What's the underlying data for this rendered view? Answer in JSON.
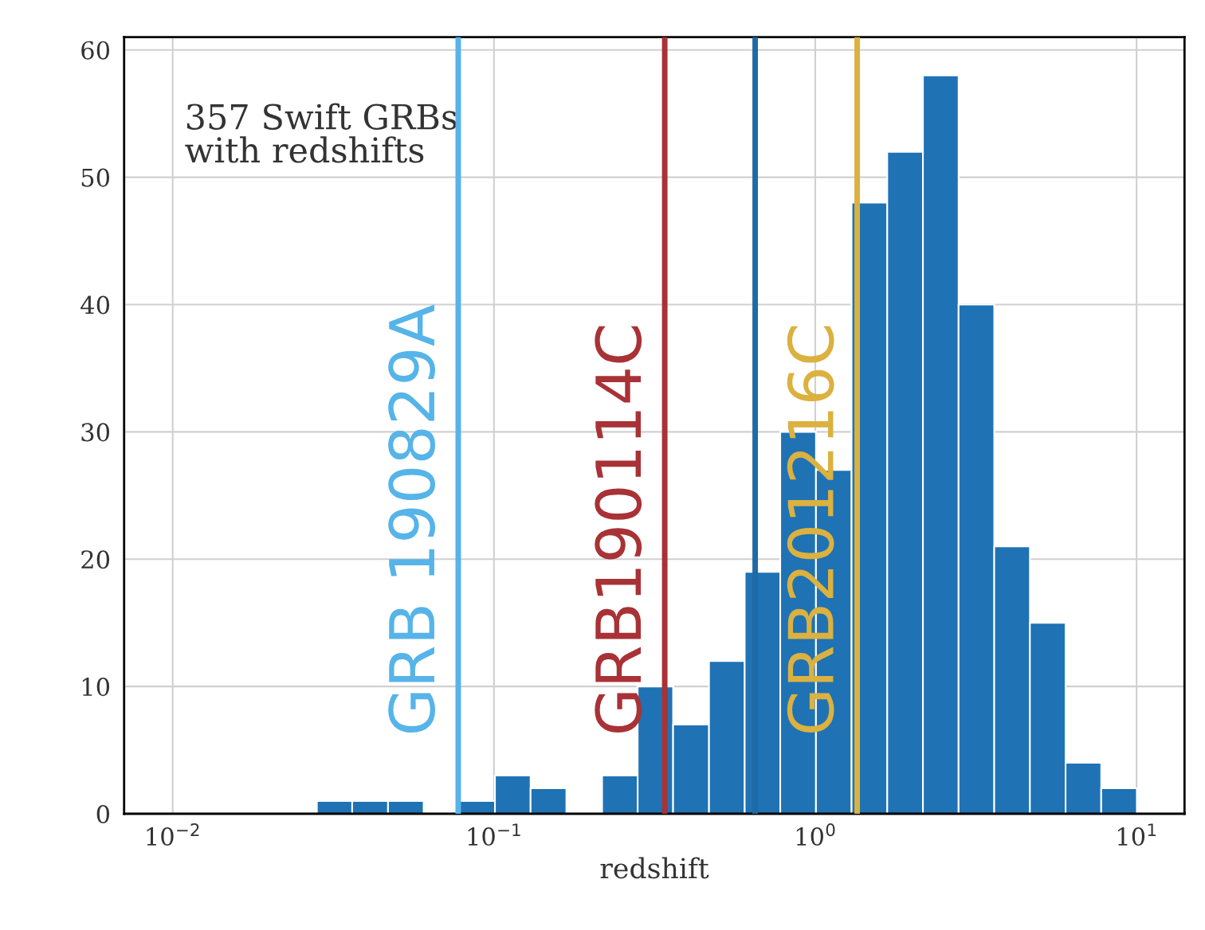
{
  "chart_data": {
    "type": "histogram",
    "xlabel": "redshift",
    "log": "x",
    "color": "#1f72b4",
    "bins": [
      0.0281,
      0.0362,
      0.0468,
      0.0604,
      0.078,
      0.1007,
      0.13,
      0.168,
      0.217,
      0.28,
      0.361,
      0.467,
      0.603,
      0.778,
      1.005,
      1.297,
      1.675,
      2.163,
      2.793,
      3.606,
      4.656,
      6.012,
      7.762,
      10.02
    ],
    "values": [
      1,
      1,
      1,
      0,
      1,
      3,
      2,
      0,
      3,
      10,
      7,
      12,
      19,
      30,
      27,
      48,
      52,
      58,
      40,
      21,
      15,
      4,
      2
    ],
    "xlim": [
      0.00706,
      14.1
    ],
    "ylim": [
      0,
      61
    ],
    "xticks": [
      {
        "value": 0.01,
        "label": "10$^{−2}$"
      },
      {
        "value": 0.1,
        "label": "10$^{−1}$"
      },
      {
        "value": 1,
        "label": "10$^{0}$"
      },
      {
        "value": 10,
        "label": "10$^{1}$"
      }
    ],
    "yticks": [
      0,
      10,
      20,
      30,
      40,
      50,
      60
    ],
    "grid": true,
    "annotations": [
      "357 Swift GRBs\nwith redshifts"
    ],
    "ref_lines": [
      {
        "axis": "x",
        "value": 0.0774,
        "label": "GRB 190829A",
        "color": "#56b4e9"
      },
      {
        "axis": "x",
        "value": 0.65,
        "color": "#1f6aa5"
      },
      {
        "axis": "x",
        "value": 0.34,
        "label": "GRB190114C",
        "color": "#a83236"
      },
      {
        "axis": "x",
        "value": 1.35,
        "label": "GRB201216C",
        "color": "#dbb13f"
      }
    ]
  }
}
